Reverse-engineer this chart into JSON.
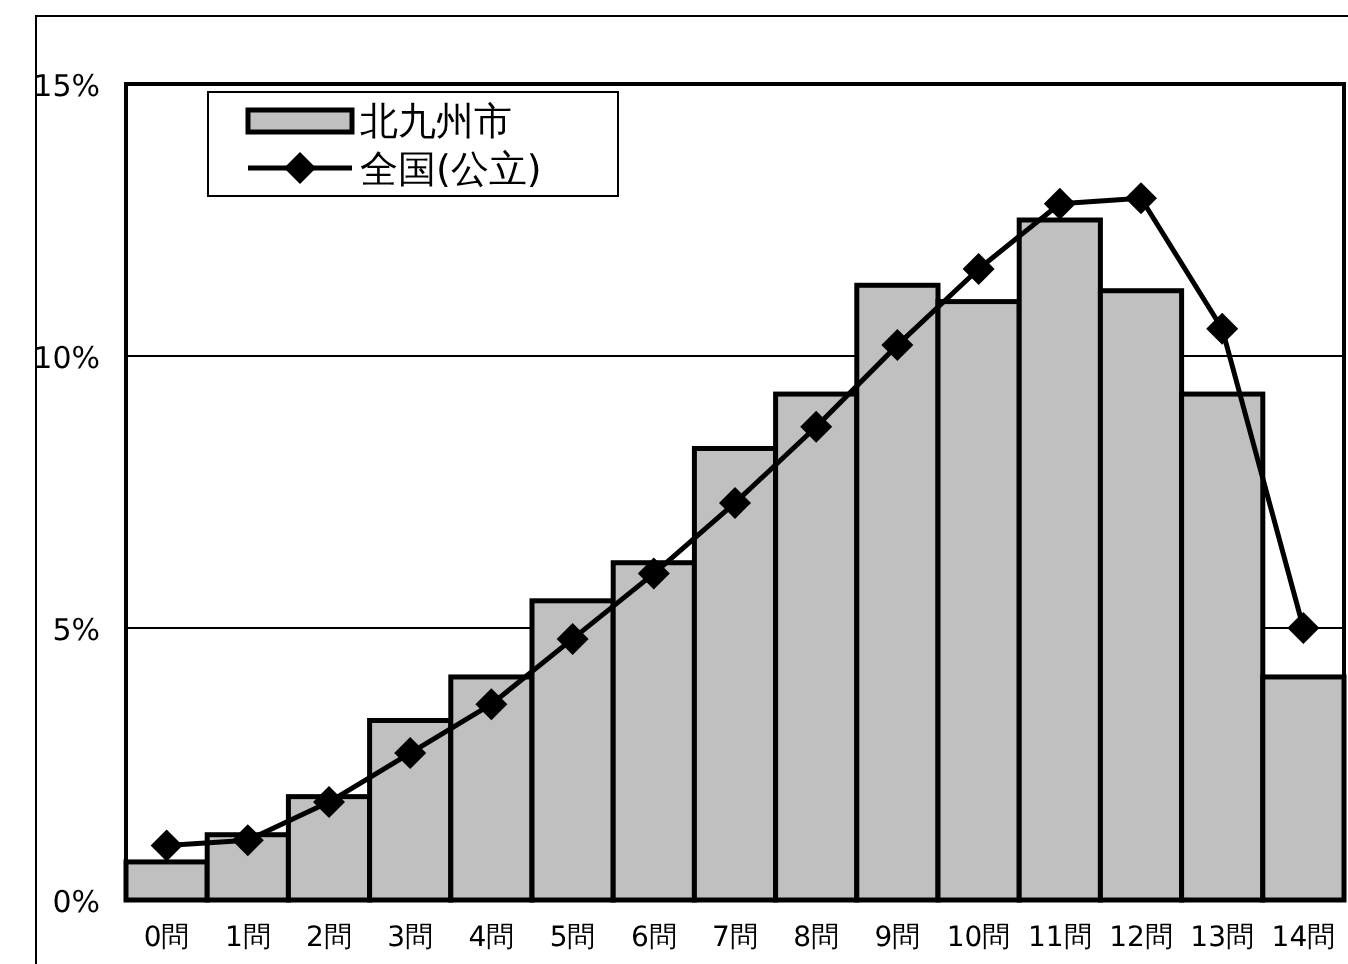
{
  "chart_data": {
    "type": "bar",
    "categories": [
      "0問",
      "1問",
      "2問",
      "3問",
      "4問",
      "5問",
      "6問",
      "7問",
      "8問",
      "9問",
      "10問",
      "11問",
      "12問",
      "13問",
      "14問"
    ],
    "series": [
      {
        "name": "北九州市",
        "color": "#c0c0c0",
        "values": [
          0.7,
          1.2,
          1.9,
          3.3,
          4.1,
          5.5,
          6.2,
          8.3,
          9.3,
          11.3,
          11.0,
          12.5,
          11.2,
          9.3,
          4.1
        ]
      },
      {
        "name": "全国(公立)",
        "type": "line",
        "color": "#000000",
        "marker": "diamond",
        "values": [
          1.0,
          1.1,
          1.8,
          2.7,
          3.6,
          4.8,
          6.0,
          7.3,
          8.7,
          10.2,
          11.6,
          12.8,
          12.9,
          10.5,
          5.0
        ]
      }
    ],
    "ylim": [
      0,
      15
    ],
    "yticks": [
      {
        "value": 0,
        "label": "0%"
      },
      {
        "value": 5,
        "label": "5%"
      },
      {
        "value": 10,
        "label": "10%"
      },
      {
        "value": 15,
        "label": "15%"
      }
    ],
    "grid": "y",
    "legend": "top left"
  }
}
